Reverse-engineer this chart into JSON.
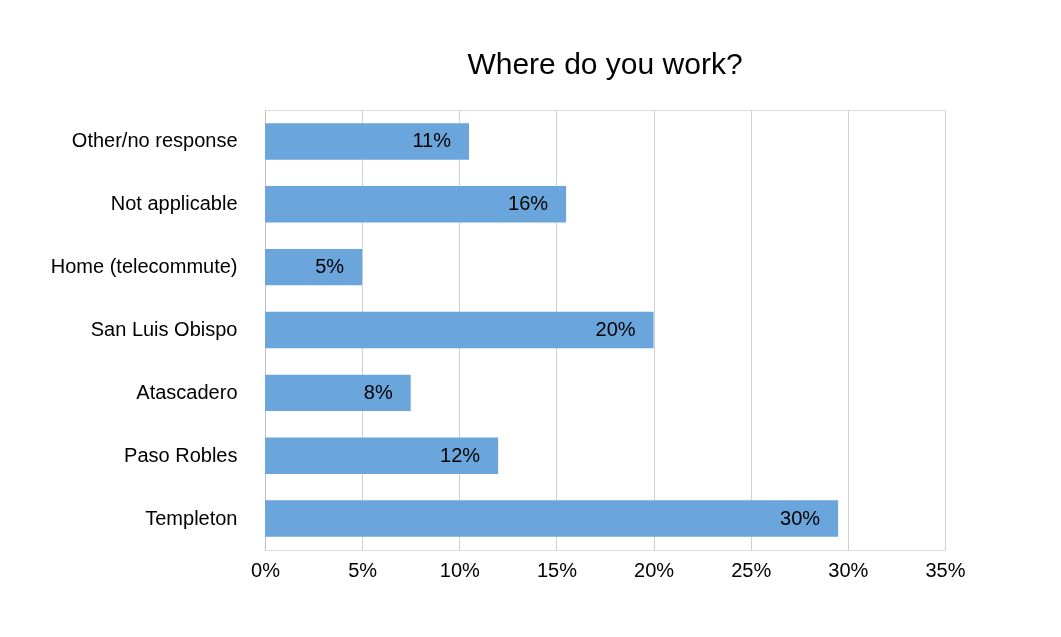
{
  "chart_data": {
    "type": "bar",
    "orientation": "horizontal",
    "title": "Where do you work?",
    "categories": [
      "Other/no response",
      "Not applicable",
      "Home (telecommute)",
      "San Luis Obispo",
      "Atascadero",
      "Paso Robles",
      "Templeton"
    ],
    "values": [
      10.5,
      15.5,
      5.0,
      20.0,
      7.5,
      12.0,
      29.5
    ],
    "value_labels": [
      "11%",
      "16%",
      "5%",
      "20%",
      "8%",
      "12%",
      "30%"
    ],
    "color": "#6aa5db",
    "xlim": [
      0,
      35
    ],
    "xticks": [
      {
        "value": 0,
        "label": "0%"
      },
      {
        "value": 5,
        "label": "5%"
      },
      {
        "value": 10,
        "label": "10%"
      },
      {
        "value": 15,
        "label": "15%"
      },
      {
        "value": 20,
        "label": "20%"
      },
      {
        "value": 25,
        "label": "25%"
      },
      {
        "value": 30,
        "label": "30%"
      },
      {
        "value": 35,
        "label": "35%"
      }
    ],
    "grid": "x"
  }
}
